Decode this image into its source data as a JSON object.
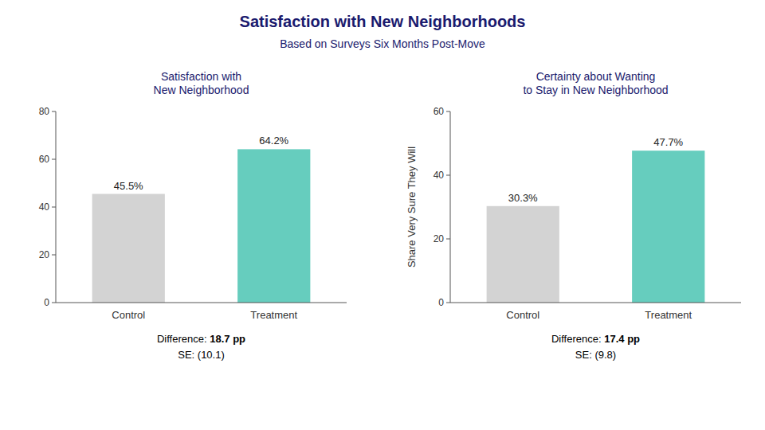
{
  "title": "Satisfaction with New Neighborhoods",
  "subtitle": "Based on Surveys Six Months Post-Move",
  "chart_data": [
    {
      "type": "bar",
      "title": "Satisfaction with\nNew Neighborhood",
      "categories": [
        "Control",
        "Treatment"
      ],
      "values": [
        45.5,
        64.2
      ],
      "value_labels": [
        "45.5%",
        "64.2%"
      ],
      "data_labels": true,
      "colors": [
        "#d3d3d3",
        "#66cdbe"
      ],
      "ylim": [
        0,
        80
      ],
      "yticks": [
        0,
        20,
        40,
        60,
        80
      ],
      "grid": false,
      "annotations": [
        "Difference: 18.7 pp",
        "SE: (10.1)"
      ]
    },
    {
      "type": "bar",
      "title": "Certainty about Wanting\nto Stay in New Neighborhood",
      "ylabel": "Share Very Sure They Will",
      "categories": [
        "Control",
        "Treatment"
      ],
      "values": [
        30.3,
        47.7
      ],
      "value_labels": [
        "30.3%",
        "47.7%"
      ],
      "data_labels": true,
      "colors": [
        "#d3d3d3",
        "#66cdbe"
      ],
      "ylim": [
        0,
        60
      ],
      "yticks": [
        0,
        20,
        40,
        60
      ],
      "grid": false,
      "annotations": [
        "Difference: 17.4 pp",
        "SE: (9.8)"
      ]
    }
  ]
}
